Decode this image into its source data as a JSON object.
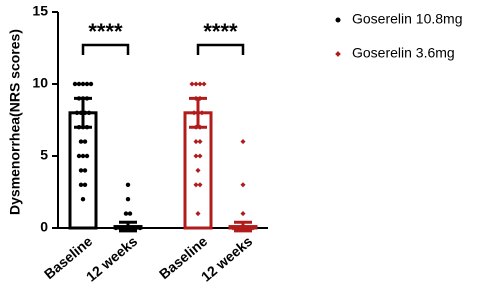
{
  "chart_data": {
    "type": "bar_dot",
    "y_label": "Dysmenorrhea(NRS scores)",
    "categories": [
      "Baseline",
      "12 weeks"
    ],
    "ylim": [
      0,
      15
    ],
    "yticks": [
      0,
      5,
      10,
      15
    ],
    "series": [
      {
        "name": "Goserelin 10.8mg",
        "color": "#000000",
        "values": [
          8,
          0.1
        ],
        "errors": [
          1,
          0.3
        ],
        "points": [
          [
            10,
            10,
            10,
            10,
            10,
            9,
            9,
            9,
            8,
            8,
            8,
            8,
            7,
            7,
            7,
            6,
            6,
            5,
            5,
            5,
            4,
            4,
            3,
            3,
            2
          ],
          [
            0,
            0,
            0,
            0,
            0,
            0,
            0,
            1,
            1,
            2,
            3
          ]
        ]
      },
      {
        "name": "Goserelin 3.6mg",
        "color": "#b01c1c",
        "values": [
          8,
          0.1
        ],
        "errors": [
          1,
          0.3
        ],
        "points": [
          [
            10,
            10,
            10,
            10,
            9,
            9,
            8,
            8,
            8,
            7,
            7,
            6,
            6,
            5,
            5,
            4,
            3,
            3,
            1
          ],
          [
            0,
            0,
            0,
            0,
            0,
            0,
            1,
            3,
            6
          ]
        ]
      }
    ],
    "annotations": [
      "****",
      "****"
    ]
  }
}
